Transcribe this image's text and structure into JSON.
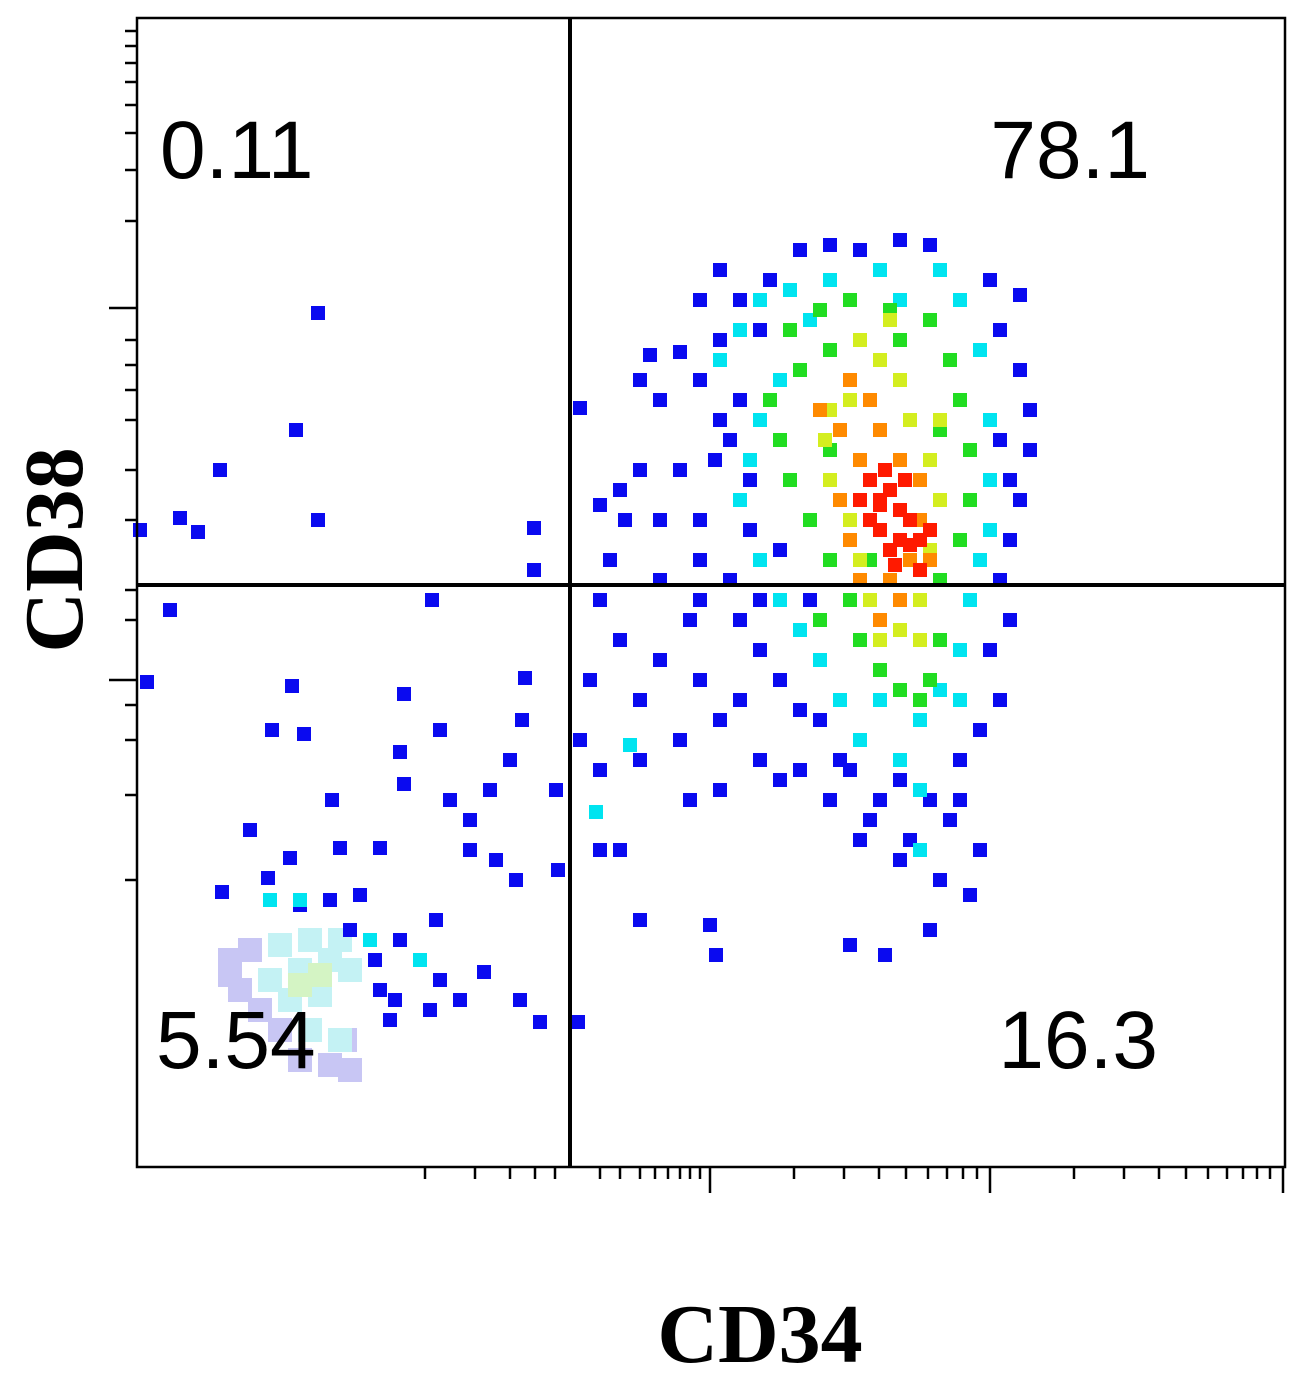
{
  "chart_data": {
    "type": "scatter",
    "x_label": "CD34",
    "y_label": "CD38",
    "xlim": [
      137,
      1285
    ],
    "ylim": [
      0,
      1149
    ],
    "xticks": [
      710,
      990,
      1283
    ],
    "xminor_ticks": [
      425,
      475,
      510,
      535,
      555,
      600,
      620,
      640,
      655,
      668,
      680,
      690,
      700,
      794,
      844,
      879,
      906,
      928,
      947,
      963,
      977,
      1074,
      1124,
      1159,
      1186,
      1208,
      1227,
      1243,
      1257,
      1270
    ],
    "yticks": [
      859,
      487
    ],
    "yminor_ticks": [
      946,
      997,
      1034,
      1062,
      1085,
      1104,
      1121,
      1136,
      827,
      802,
      777,
      747,
      697,
      647,
      577,
      547,
      462,
      427,
      372,
      287
    ],
    "gates": {
      "x": 570,
      "y": 582
    },
    "quadrant_values": [
      0.11,
      78.1,
      5.54,
      16.3
    ],
    "series": [
      {
        "color": "#c8c6f4",
        "x": [
          230,
          250,
          240,
          260,
          280,
          300,
          330,
          350,
          345,
          230
        ],
        "values": [
          207,
          217,
          177,
          157,
          137,
          107,
          102,
          97,
          127,
          192
        ]
      },
      {
        "color": "#c4f2f4",
        "x": [
          280,
          310,
          340,
          270,
          300,
          330,
          350,
          290,
          320,
          310,
          340
        ],
        "values": [
          222,
          227,
          227,
          187,
          197,
          207,
          197,
          167,
          172,
          137,
          127
        ]
      },
      {
        "color": "#d4f4c4",
        "x": [
          300,
          320
        ],
        "values": [
          182,
          192
        ]
      },
      {
        "color": "#0a0af0",
        "x": [
          318,
          296,
          220,
          180,
          198,
          318,
          140,
          170,
          147,
          292,
          432,
          404,
          272,
          304,
          440,
          400,
          404,
          332,
          250,
          290,
          340,
          380,
          450,
          470,
          490,
          510,
          522,
          525,
          534,
          534,
          556,
          558,
          516,
          470,
          496,
          222,
          268,
          436,
          400,
          484,
          520,
          540,
          430,
          460,
          578,
          440,
          390,
          380,
          330,
          300,
          360,
          350,
          375,
          395,
          580,
          600,
          620,
          625,
          610,
          640,
          650,
          680,
          660,
          700,
          720,
          740,
          770,
          800,
          830,
          860,
          900,
          930,
          990,
          1020,
          1000,
          1020,
          1030,
          1030,
          1020,
          1010,
          1000,
          600,
          620,
          590,
          640,
          660,
          580,
          600,
          640,
          680,
          720,
          700,
          740,
          760,
          780,
          720,
          690,
          620,
          600,
          640,
          710,
          716,
          850,
          885,
          930,
          970,
          940,
          900,
          860,
          830,
          800,
          850,
          900,
          960,
          980,
          950,
          990,
          1010,
          680,
          700,
          700,
          740,
          760,
          690,
          730,
          660,
          715,
          720,
          740,
          700,
          760,
          810,
          780,
          660,
          640,
          800,
          930,
          870,
          910,
          960,
          980,
          1000,
          720,
          730,
          750,
          760,
          780,
          820,
          840,
          880,
          1000,
          1010,
          700,
          750
        ],
        "values": [
          854,
          737,
          697,
          649,
          635,
          647,
          637,
          557,
          485,
          481,
          567,
          473,
          437,
          433,
          437,
          415,
          383,
          367,
          337,
          309,
          319,
          319,
          367,
          347,
          377,
          407,
          447,
          489,
          639,
          597,
          377,
          297,
          287,
          317,
          307,
          275,
          289,
          247,
          227,
          195,
          167,
          145,
          157,
          167,
          145,
          187,
          147,
          177,
          267,
          262,
          272,
          237,
          207,
          167,
          759,
          662,
          677,
          647,
          607,
          787,
          812,
          815,
          767,
          867,
          897,
          867,
          887,
          917,
          922,
          917,
          927,
          922,
          887,
          872,
          837,
          797,
          757,
          717,
          667,
          627,
          587,
          567,
          527,
          487,
          467,
          507,
          427,
          397,
          407,
          427,
          447,
          487,
          467,
          407,
          387,
          377,
          367,
          317,
          317,
          247,
          242,
          212,
          222,
          212,
          237,
          272,
          287,
          307,
          327,
          367,
          397,
          397,
          387,
          407,
          437,
          347,
          517,
          547,
          697,
          647,
          607,
          547,
          517,
          547,
          587,
          587,
          707,
          747,
          767,
          787,
          837,
          567,
          617,
          647,
          697,
          457,
          367,
          347,
          327,
          367,
          317,
          467,
          827,
          727,
          687,
          567,
          487,
          447,
          407,
          367,
          727,
          687,
          567,
          637
        ]
      },
      {
        "color": "#00e4f0",
        "x": [
          270,
          300,
          370,
          420,
          630,
          596,
          740,
          720,
          760,
          790,
          830,
          880,
          940,
          960,
          980,
          990,
          990,
          980,
          970,
          960,
          940,
          920,
          900,
          860,
          840,
          820,
          800,
          780,
          760,
          740,
          750,
          760,
          780,
          920,
          920,
          880,
          990,
          810,
          900,
          960
        ],
        "values": [
          267,
          267,
          227,
          207,
          422,
          355,
          837,
          807,
          867,
          877,
          887,
          897,
          897,
          867,
          817,
          747,
          687,
          607,
          567,
          517,
          477,
          447,
          407,
          427,
          467,
          507,
          537,
          567,
          607,
          667,
          707,
          747,
          787,
          377,
          317,
          467,
          637,
          847,
          867,
          467
        ]
      },
      {
        "color": "#22dd22",
        "x": [
          790,
          820,
          850,
          890,
          930,
          950,
          960,
          970,
          970,
          960,
          940,
          940,
          930,
          900,
          880,
          860,
          850,
          830,
          810,
          790,
          780,
          770,
          800,
          830,
          900,
          940,
          820,
          870,
          920,
          830
        ],
        "values": [
          837,
          857,
          867,
          857,
          847,
          807,
          767,
          717,
          667,
          627,
          587,
          527,
          487,
          477,
          497,
          527,
          567,
          607,
          647,
          687,
          727,
          767,
          797,
          817,
          827,
          737,
          547,
          607,
          467,
          717
        ]
      },
      {
        "color": "#d4ee20",
        "x": [
          860,
          880,
          900,
          910,
          930,
          940,
          930,
          920,
          900,
          880,
          870,
          860,
          850,
          830,
          825,
          850,
          830,
          940,
          890,
          920
        ],
        "values": [
          827,
          807,
          787,
          747,
          707,
          667,
          617,
          567,
          537,
          527,
          567,
          607,
          647,
          687,
          727,
          767,
          757,
          747,
          847,
          527
        ]
      },
      {
        "color": "#ff8a00",
        "x": [
          820,
          850,
          870,
          880,
          900,
          920,
          920,
          910,
          900,
          880,
          860,
          850,
          840,
          860,
          840,
          930,
          890
        ],
        "values": [
          757,
          787,
          767,
          737,
          707,
          687,
          647,
          607,
          567,
          547,
          587,
          627,
          667,
          707,
          737,
          607,
          587
        ]
      },
      {
        "color": "#ff1a00",
        "x": [
          870,
          880,
          890,
          900,
          910,
          900,
          880,
          890,
          910,
          920,
          870,
          860,
          885,
          905,
          895,
          920,
          880,
          930
        ],
        "values": [
          687,
          667,
          677,
          657,
          647,
          627,
          637,
          617,
          622,
          627,
          647,
          667,
          697,
          687,
          602,
          597,
          662,
          637
        ]
      }
    ]
  }
}
